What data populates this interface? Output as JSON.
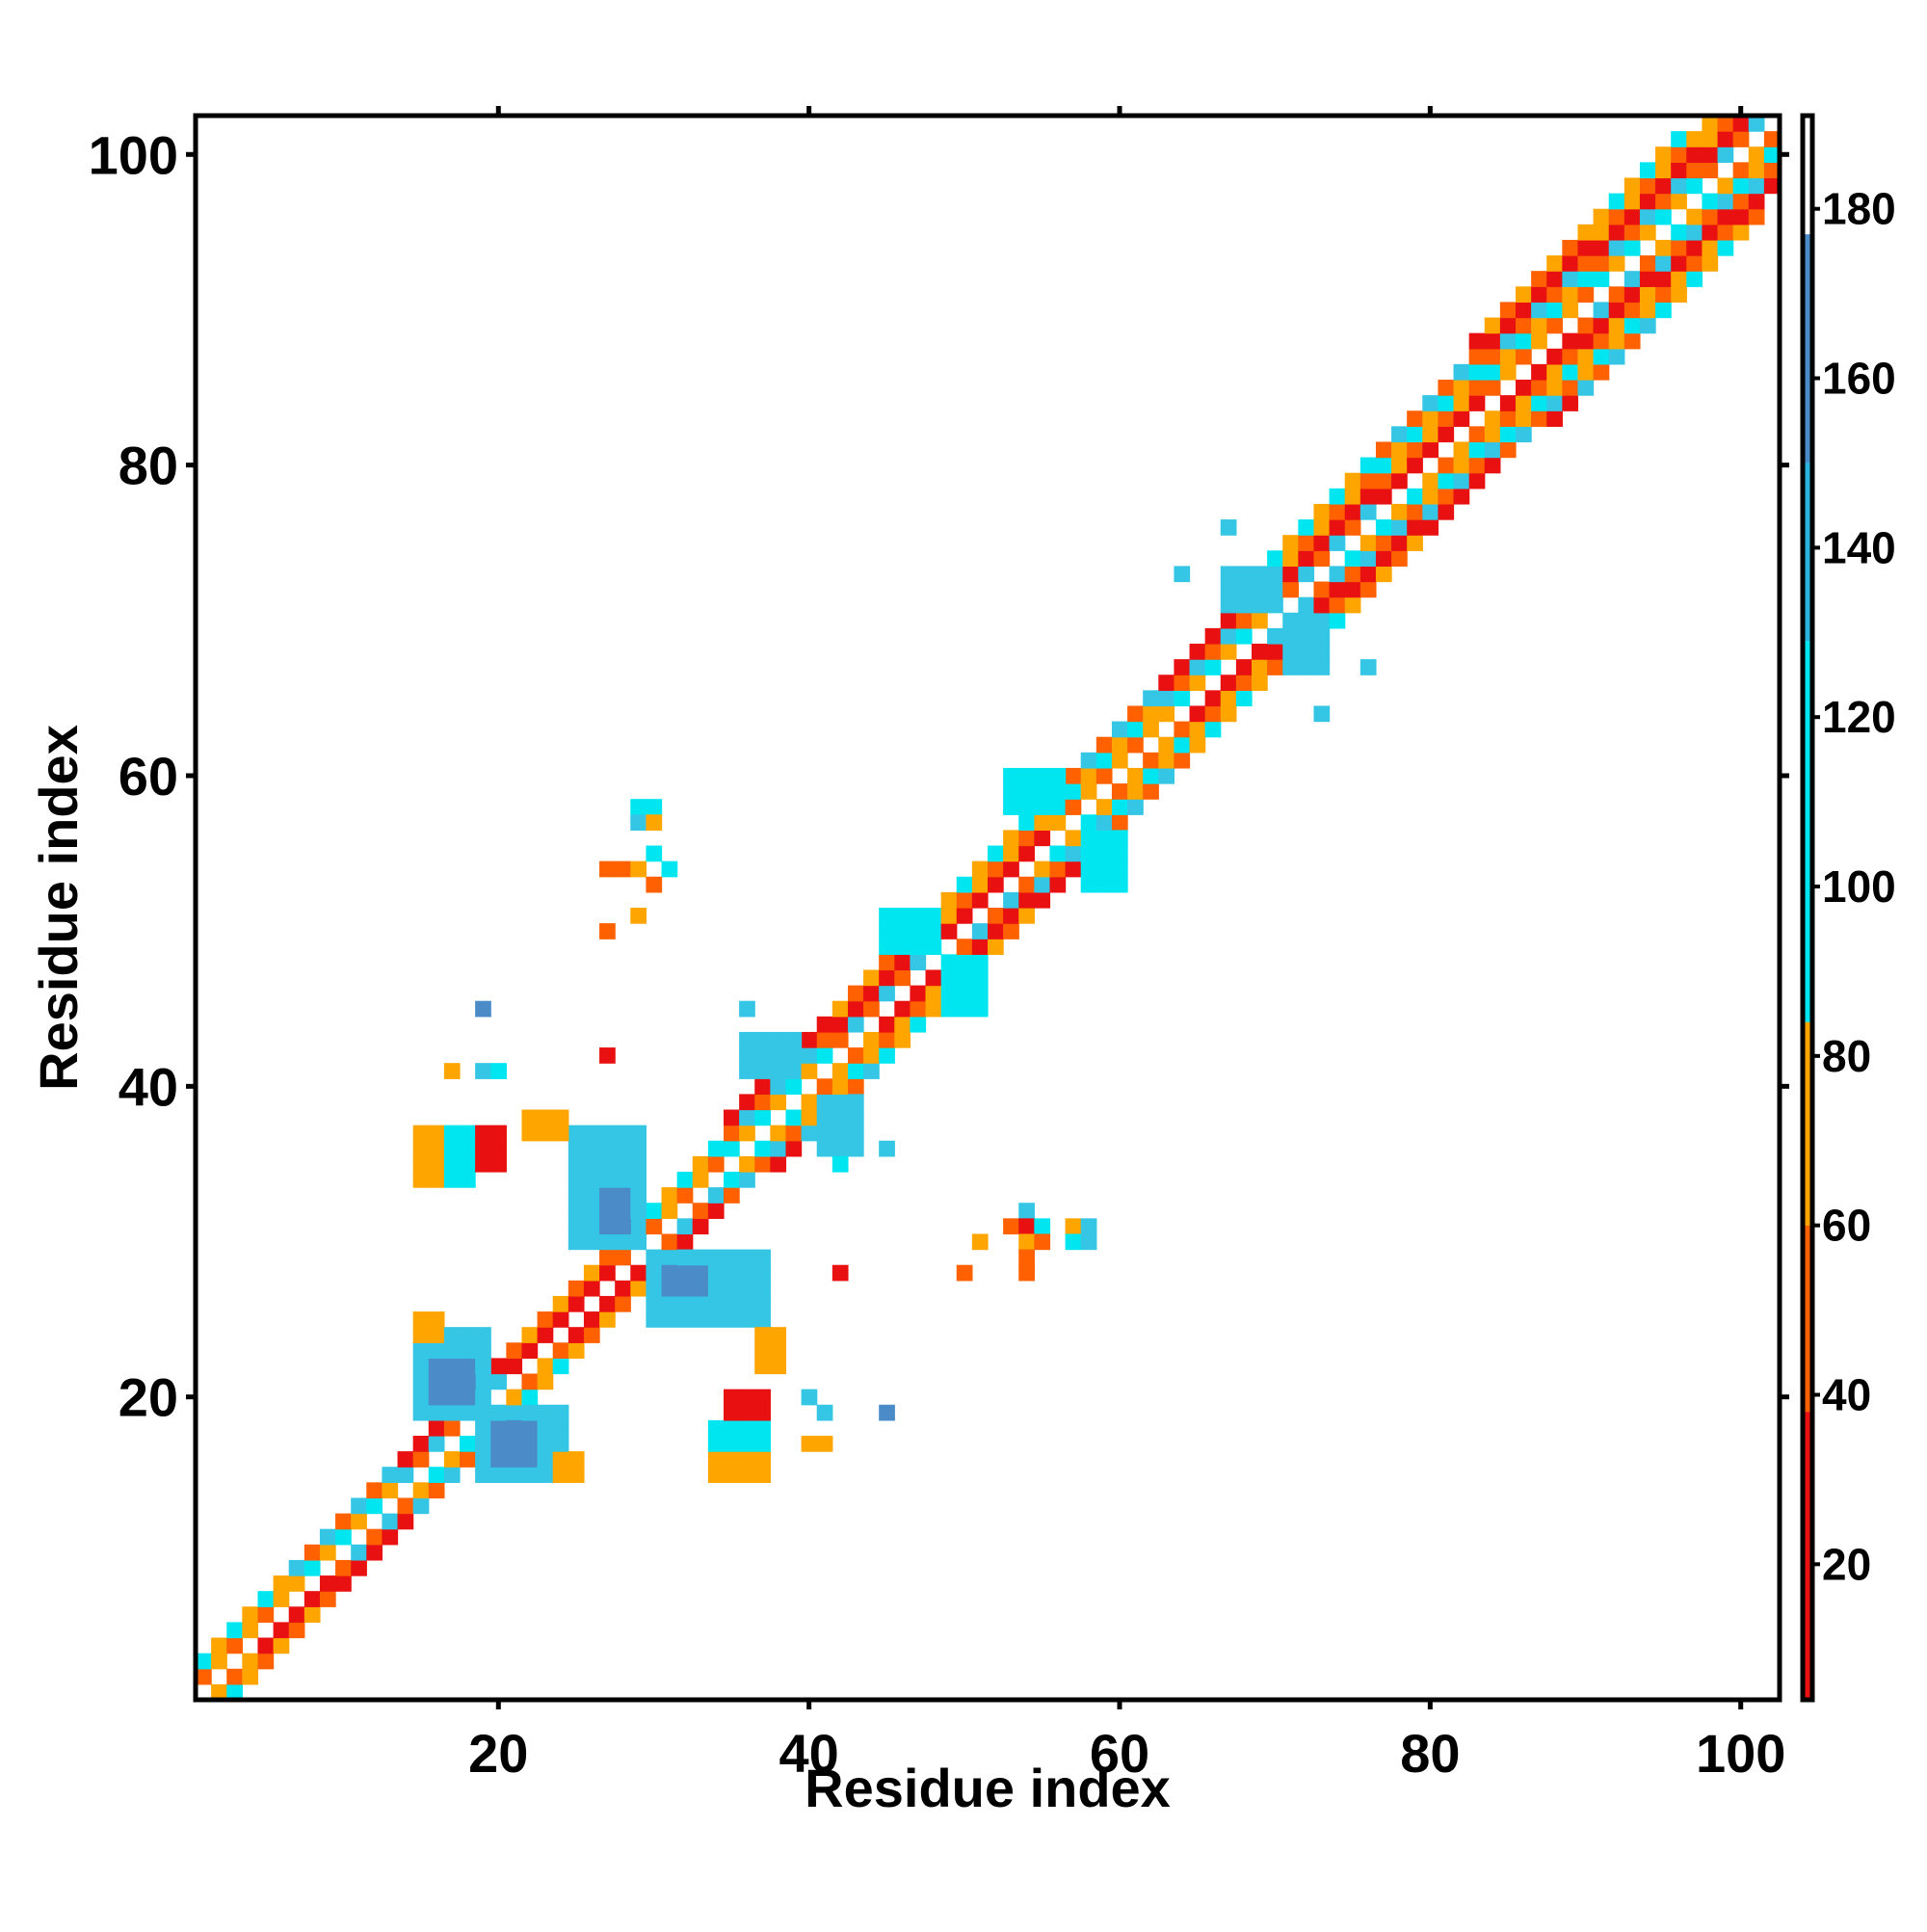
{
  "chart_data": {
    "type": "heatmap",
    "xlabel": "Residue index",
    "ylabel": "Residue index",
    "xlim": [
      1,
      102
    ],
    "ylim": [
      1,
      102
    ],
    "x_ticks": [
      20,
      40,
      60,
      80,
      100
    ],
    "y_ticks": [
      20,
      40,
      60,
      80,
      100
    ],
    "colorbar": {
      "range": [
        4,
        191
      ],
      "ticks": [
        20,
        40,
        60,
        80,
        100,
        120,
        140,
        160,
        180
      ],
      "segments": [
        {
          "from": 4,
          "to": 38,
          "color": "#e81010"
        },
        {
          "from": 38,
          "to": 60,
          "color": "#ff6000"
        },
        {
          "from": 60,
          "to": 84,
          "color": "#ffa500"
        },
        {
          "from": 84,
          "to": 129,
          "color": "#00e6f0"
        },
        {
          "from": 129,
          "to": 150,
          "color": "#2ab4dc"
        },
        {
          "from": 150,
          "to": 177,
          "color": "#4b8cc8"
        },
        {
          "from": 177,
          "to": 191,
          "color": "#ffffff"
        }
      ]
    },
    "color_categories": {
      "red": "#e81010",
      "orange_red": "#ff6000",
      "orange": "#ffa500",
      "cyan": "#00e6f0",
      "light_blue": "#34c6e4",
      "steel_blue": "#4b8cc8"
    },
    "band": {
      "description_values": "diagonal contact band |i-j| <= width, width grows along sequence",
      "width_points": [
        [
          1,
          2
        ],
        [
          12,
          2
        ],
        [
          30,
          2
        ],
        [
          40,
          3
        ],
        [
          60,
          3
        ],
        [
          75,
          4
        ],
        [
          90,
          5
        ],
        [
          102,
          4
        ]
      ],
      "pattern": [
        "#e81010",
        "#ff6000",
        "#ffa500",
        "#ff6000",
        "#e81010",
        "#ffa500",
        "#00e6f0",
        "#34c6e4"
      ]
    },
    "clusters": [
      {
        "x": [
          15,
          19
        ],
        "y": [
          19,
          24
        ],
        "color": "#34c6e4"
      },
      {
        "x": [
          19,
          24
        ],
        "y": [
          15,
          19
        ],
        "color": "#34c6e4"
      },
      {
        "x": [
          16,
          18
        ],
        "y": [
          20,
          22
        ],
        "color": "#4b8cc8"
      },
      {
        "x": [
          20,
          22
        ],
        "y": [
          16,
          18
        ],
        "color": "#4b8cc8"
      },
      {
        "x": [
          15,
          16
        ],
        "y": [
          24,
          25
        ],
        "color": "#ffa500"
      },
      {
        "x": [
          24,
          25
        ],
        "y": [
          15,
          16
        ],
        "color": "#ffa500"
      },
      {
        "x": [
          25,
          29
        ],
        "y": [
          30,
          37
        ],
        "color": "#34c6e4"
      },
      {
        "x": [
          30,
          37
        ],
        "y": [
          25,
          29
        ],
        "color": "#34c6e4"
      },
      {
        "x": [
          27,
          28
        ],
        "y": [
          31,
          33
        ],
        "color": "#4b8cc8"
      },
      {
        "x": [
          31,
          33
        ],
        "y": [
          27,
          28
        ],
        "color": "#4b8cc8"
      },
      {
        "x": [
          15,
          17
        ],
        "y": [
          34,
          37
        ],
        "color": "#ffa500"
      },
      {
        "x": [
          17,
          18
        ],
        "y": [
          34,
          37
        ],
        "color": "#00e6f0"
      },
      {
        "x": [
          19,
          20
        ],
        "y": [
          35,
          37
        ],
        "color": "#e81010"
      },
      {
        "x": [
          22,
          24
        ],
        "y": [
          37,
          38
        ],
        "color": "#ffa500"
      },
      {
        "x": [
          34,
          37
        ],
        "y": [
          15,
          17
        ],
        "color": "#ffa500"
      },
      {
        "x": [
          34,
          37
        ],
        "y": [
          17,
          18
        ],
        "color": "#00e6f0"
      },
      {
        "x": [
          35,
          37
        ],
        "y": [
          19,
          20
        ],
        "color": "#e81010"
      },
      {
        "x": [
          37,
          38
        ],
        "y": [
          22,
          24
        ],
        "color": "#ffa500"
      },
      {
        "x": [
          67,
          70
        ],
        "y": [
          71,
          73
        ],
        "color": "#34c6e4"
      },
      {
        "x": [
          71,
          73
        ],
        "y": [
          67,
          70
        ],
        "color": "#34c6e4"
      },
      {
        "x": [
          36,
          39
        ],
        "y": [
          41,
          43
        ],
        "color": "#34c6e4"
      },
      {
        "x": [
          41,
          43
        ],
        "y": [
          36,
          39
        ],
        "color": "#34c6e4"
      },
      {
        "x": [
          45,
          48
        ],
        "y": [
          49,
          51
        ],
        "color": "#00e6f0"
      },
      {
        "x": [
          49,
          51
        ],
        "y": [
          45,
          48
        ],
        "color": "#00e6f0"
      },
      {
        "x": [
          53,
          56
        ],
        "y": [
          58,
          60
        ],
        "color": "#00e6f0"
      },
      {
        "x": [
          58,
          60
        ],
        "y": [
          53,
          56
        ],
        "color": "#00e6f0"
      }
    ],
    "points": [
      {
        "x": 19,
        "y": 45,
        "color": "#4b8cc8"
      },
      {
        "x": 17,
        "y": 41,
        "color": "#ffa500"
      },
      {
        "x": 19,
        "y": 41,
        "color": "#34c6e4"
      },
      {
        "x": 20,
        "y": 41,
        "color": "#00e6f0"
      },
      {
        "x": 29,
        "y": 58,
        "color": "#00e6f0"
      },
      {
        "x": 30,
        "y": 58,
        "color": "#00e6f0"
      },
      {
        "x": 29,
        "y": 57,
        "color": "#34c6e4"
      },
      {
        "x": 30,
        "y": 57,
        "color": "#ffa500"
      },
      {
        "x": 27,
        "y": 54,
        "color": "#ff6000"
      },
      {
        "x": 28,
        "y": 54,
        "color": "#ff6000"
      },
      {
        "x": 29,
        "y": 54,
        "color": "#ffa500"
      },
      {
        "x": 30,
        "y": 55,
        "color": "#00e6f0"
      },
      {
        "x": 31,
        "y": 54,
        "color": "#00e6f0"
      },
      {
        "x": 30,
        "y": 53,
        "color": "#ff6000"
      },
      {
        "x": 29,
        "y": 51,
        "color": "#ffa500"
      },
      {
        "x": 27,
        "y": 50,
        "color": "#ff6000"
      },
      {
        "x": 27,
        "y": 42,
        "color": "#e81010"
      },
      {
        "x": 36,
        "y": 45,
        "color": "#34c6e4"
      },
      {
        "x": 45,
        "y": 36,
        "color": "#34c6e4"
      },
      {
        "x": 42,
        "y": 35,
        "color": "#00e6f0"
      },
      {
        "x": 40,
        "y": 20,
        "color": "#34c6e4"
      },
      {
        "x": 41,
        "y": 19,
        "color": "#34c6e4"
      },
      {
        "x": 45,
        "y": 19,
        "color": "#4b8cc8"
      },
      {
        "x": 40,
        "y": 17,
        "color": "#ffa500"
      },
      {
        "x": 41,
        "y": 17,
        "color": "#ffa500"
      },
      {
        "x": 42,
        "y": 28,
        "color": "#e81010"
      },
      {
        "x": 50,
        "y": 28,
        "color": "#ff6000"
      },
      {
        "x": 51,
        "y": 30,
        "color": "#ffa500"
      },
      {
        "x": 53,
        "y": 31,
        "color": "#ff6000"
      },
      {
        "x": 54,
        "y": 32,
        "color": "#34c6e4"
      },
      {
        "x": 54,
        "y": 31,
        "color": "#e81010"
      },
      {
        "x": 55,
        "y": 31,
        "color": "#00e6f0"
      },
      {
        "x": 54,
        "y": 30,
        "color": "#ffa500"
      },
      {
        "x": 55,
        "y": 30,
        "color": "#ff6000"
      },
      {
        "x": 54,
        "y": 29,
        "color": "#ff6000"
      },
      {
        "x": 54,
        "y": 28,
        "color": "#ff6000"
      },
      {
        "x": 57,
        "y": 31,
        "color": "#ffa500"
      },
      {
        "x": 58,
        "y": 31,
        "color": "#34c6e4"
      },
      {
        "x": 57,
        "y": 30,
        "color": "#00e6f0"
      },
      {
        "x": 58,
        "y": 30,
        "color": "#34c6e4"
      },
      {
        "x": 64,
        "y": 73,
        "color": "#34c6e4"
      },
      {
        "x": 67,
        "y": 76,
        "color": "#34c6e4"
      },
      {
        "x": 73,
        "y": 64,
        "color": "#34c6e4"
      },
      {
        "x": 76,
        "y": 67,
        "color": "#34c6e4"
      }
    ],
    "grid": false,
    "legend": "colorbar-right"
  }
}
